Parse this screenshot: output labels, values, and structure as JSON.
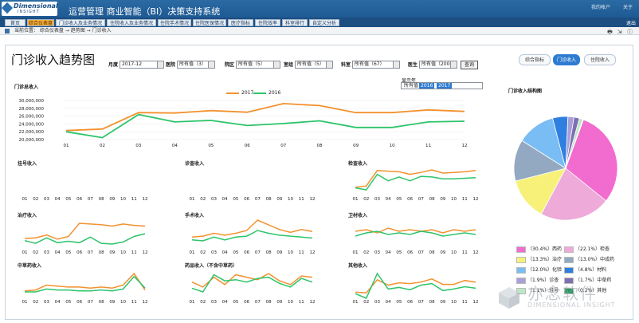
{
  "header": {
    "logo_line1": "Dimensional",
    "logo_line2": "INSIGHT",
    "title": "运营管理 商业智能（BI）决策支持系统",
    "links": [
      "我的帐户",
      "关于"
    ]
  },
  "nav": {
    "tabs": [
      "首页",
      "综合仪表盘",
      "门诊收入及业务情况",
      "住院收入及业务情况",
      "住院手术情况",
      "住院医保情况",
      "医疗指标",
      "住院效率",
      "科室排行",
      "自定义分析"
    ],
    "active_index": 1,
    "right_label": "退出"
  },
  "breadcrumb": {
    "text": "当前位置： 综合仪表盘 → 趋势图 → 门诊收入",
    "tools": "🖶 ⇲ ⓘ"
  },
  "page": {
    "title": "门诊收入趋势图"
  },
  "filters": {
    "month_label": "月度",
    "month_value": "2017-12",
    "hospital_label": "医院",
    "hospital_value": "所有值（3）",
    "district_label": "院区",
    "district_value": "所有值（5）",
    "dept_label": "室组",
    "dept_value": "所有值（5）",
    "section_label": "科室",
    "section_value": "所有值（67）",
    "doctor_label": "医生",
    "doctor_value": "所有值（2006）",
    "query_label": "查询"
  },
  "right_buttons": [
    "综合指标",
    "门诊收入",
    "住院收入"
  ],
  "right_active": 1,
  "main_chart": {
    "label": "门诊总收入",
    "show_year_label": "显示年",
    "year_options": [
      "所有值",
      "2016",
      "2017"
    ],
    "colors": {
      "2017": "#f2912f",
      "2016": "#2dc46a"
    }
  },
  "chart_data": [
    {
      "type": "line",
      "title": "门诊总收入",
      "x": [
        "01",
        "02",
        "03",
        "04",
        "05",
        "06",
        "07",
        "08",
        "09",
        "10",
        "11",
        "12"
      ],
      "ylim": [
        20000000,
        30000000
      ],
      "yticks": [
        "30,000,000",
        "28,000,000",
        "26,000,000",
        "24,000,000",
        "22,000,000",
        "20,000,000"
      ],
      "series": [
        {
          "name": "2017",
          "values": [
            22300000,
            22700000,
            26900000,
            26800000,
            27400000,
            27000000,
            29200000,
            28700000,
            26900000,
            26900000,
            27600000,
            27200000
          ]
        },
        {
          "name": "2016",
          "values": [
            22000000,
            20500000,
            26400000,
            24500000,
            24900000,
            23600000,
            24100000,
            24800000,
            23100000,
            23100000,
            24500000,
            24700000
          ]
        }
      ]
    },
    {
      "type": "line",
      "title": "挂号收入",
      "x": [
        "01",
        "02",
        "03",
        "04",
        "05",
        "06",
        "07",
        "08",
        "09",
        "10",
        "11",
        "12"
      ],
      "series": []
    },
    {
      "type": "line",
      "title": "诊查收入",
      "x": [
        "01",
        "02",
        "03",
        "04",
        "05",
        "06",
        "07",
        "08",
        "09",
        "10",
        "11",
        "12"
      ],
      "series": []
    },
    {
      "type": "line",
      "title": "检查收入",
      "x": [
        "01",
        "02",
        "03",
        "04",
        "05",
        "06",
        "07",
        "08",
        "09",
        "10",
        "11",
        "12"
      ],
      "series": [
        {
          "name": "2017",
          "values": [
            3.0,
            3.2,
            5.6,
            5.5,
            5.4,
            5.0,
            5.3,
            5.7,
            5.2,
            5.3,
            5.4,
            5.6
          ]
        },
        {
          "name": "2016",
          "values": [
            2.9,
            2.6,
            5.0,
            4.0,
            4.6,
            4.0,
            4.7,
            4.6,
            4.3,
            4.3,
            4.4,
            4.5
          ]
        }
      ]
    },
    {
      "type": "line",
      "title": "治疗收入",
      "x": [
        "01",
        "02",
        "03",
        "04",
        "05",
        "06",
        "07",
        "08",
        "09",
        "10",
        "11",
        "12"
      ],
      "series": [
        {
          "name": "2017",
          "values": [
            3.4,
            3.5,
            3.9,
            3.3,
            3.7,
            5.6,
            5.5,
            5.4,
            5.2,
            5.5,
            5.3,
            5.2
          ]
        },
        {
          "name": "2016",
          "values": [
            3.1,
            2.7,
            3.5,
            2.8,
            3.0,
            2.8,
            3.6,
            2.7,
            2.6,
            2.9,
            3.7,
            4.1
          ]
        }
      ]
    },
    {
      "type": "line",
      "title": "手术收入",
      "x": [
        "01",
        "02",
        "03",
        "04",
        "05",
        "06",
        "07",
        "08",
        "09",
        "10",
        "11",
        "12"
      ],
      "series": [
        {
          "name": "2017",
          "values": [
            3.4,
            3.5,
            3.8,
            3.6,
            3.8,
            4.1,
            5.2,
            4.7,
            4.2,
            3.9,
            4.2,
            4.0
          ]
        },
        {
          "name": "2016",
          "values": [
            3.1,
            3.0,
            3.4,
            3.1,
            3.4,
            3.5,
            4.1,
            3.8,
            3.6,
            3.5,
            3.4,
            3.3
          ]
        }
      ]
    },
    {
      "type": "line",
      "title": "卫材收入",
      "x": [
        "01",
        "02",
        "03",
        "04",
        "05",
        "06",
        "07",
        "08",
        "09",
        "10",
        "11",
        "12"
      ],
      "series": [
        {
          "name": "2017",
          "values": [
            3.5,
            3.6,
            3.4,
            3.7,
            3.5,
            3.6,
            3.5,
            3.6,
            3.4,
            3.6,
            3.5,
            3.6
          ]
        },
        {
          "name": "2016",
          "values": [
            3.2,
            3.4,
            3.5,
            3.3,
            3.4,
            3.3,
            3.5,
            3.4,
            3.2,
            3.3,
            3.4,
            3.3
          ]
        }
      ]
    },
    {
      "type": "line",
      "title": "中草药收入",
      "x": [
        "01",
        "02",
        "03",
        "04",
        "05",
        "06",
        "07",
        "08",
        "09",
        "10",
        "11",
        "12"
      ],
      "series": [
        {
          "name": "2017",
          "values": [
            3.0,
            3.1,
            3.6,
            3.5,
            3.4,
            3.4,
            3.3,
            3.4,
            3.3,
            3.6,
            4.8,
            3.1
          ]
        },
        {
          "name": "2016",
          "values": [
            2.9,
            2.9,
            3.2,
            3.1,
            3.1,
            3.0,
            3.0,
            3.1,
            3.0,
            3.2,
            4.5,
            3.3
          ]
        }
      ]
    },
    {
      "type": "line",
      "title": "药品收入（不含中草药）",
      "x": [
        "01",
        "02",
        "03",
        "04",
        "05",
        "06",
        "07",
        "08",
        "09",
        "10",
        "11",
        "12"
      ],
      "series": [
        {
          "name": "2017",
          "values": [
            4.0,
            3.6,
            4.4,
            3.8,
            4.6,
            4.4,
            4.2,
            4.7,
            4.1,
            3.8,
            4.5,
            4.4
          ]
        },
        {
          "name": "2016",
          "values": [
            3.5,
            3.2,
            4.6,
            4.1,
            4.2,
            4.0,
            4.3,
            4.4,
            3.9,
            3.6,
            4.3,
            4.0
          ]
        }
      ]
    },
    {
      "type": "line",
      "title": "其他收入",
      "x": [
        "01",
        "02",
        "03",
        "04",
        "05",
        "06",
        "07",
        "08",
        "09",
        "10",
        "11",
        "12"
      ],
      "series": [
        {
          "name": "2017",
          "values": [
            3.2,
            3.1,
            4.8,
            4.1,
            4.4,
            4.3,
            4.5,
            4.9,
            4.2,
            4.2,
            4.7,
            4.5
          ]
        },
        {
          "name": "2016",
          "values": [
            3.0,
            2.4,
            5.6,
            3.6,
            3.8,
            3.5,
            4.1,
            4.3,
            3.4,
            3.6,
            3.9,
            3.7
          ]
        }
      ]
    },
    {
      "type": "pie",
      "title": "门诊收入结构图",
      "slices": [
        {
          "label": "西药",
          "pct": 30.4,
          "color": "#f26bce"
        },
        {
          "label": "检查",
          "pct": 22.1,
          "color": "#eeaad8"
        },
        {
          "label": "治疗",
          "pct": 13.3,
          "color": "#f7f179"
        },
        {
          "label": "中成药",
          "pct": 13.0,
          "color": "#93a9c2"
        },
        {
          "label": "化验",
          "pct": 12.0,
          "color": "#79bdf4"
        },
        {
          "label": "材料",
          "pct": 4.8,
          "color": "#2f7fe0"
        },
        {
          "label": "诊查",
          "pct": 1.9,
          "color": "#a89fd8"
        },
        {
          "label": "中草药",
          "pct": 1.7,
          "color": "#7e6fb4"
        },
        {
          "label": "挂号",
          "pct": 1.1,
          "color": "#bde7c4"
        },
        {
          "label": "其他",
          "pct": 0.2,
          "color": "#1e9b5a"
        }
      ]
    }
  ],
  "pie_legend": [
    [
      "（30.4%）西药",
      "（22.1%）检查"
    ],
    [
      "（13.3%）治疗",
      "（13.0%）中成药"
    ],
    [
      "（12.0%）化验",
      "（4.8%）材料"
    ],
    [
      "（1.9%）诊查",
      "（1.7%）中草药"
    ],
    [
      "（1.1%）挂号",
      "（0.2%）其他"
    ]
  ],
  "watermark": {
    "big": "亦念软件",
    "small": "DIMENSIONAL INSIGHT"
  }
}
